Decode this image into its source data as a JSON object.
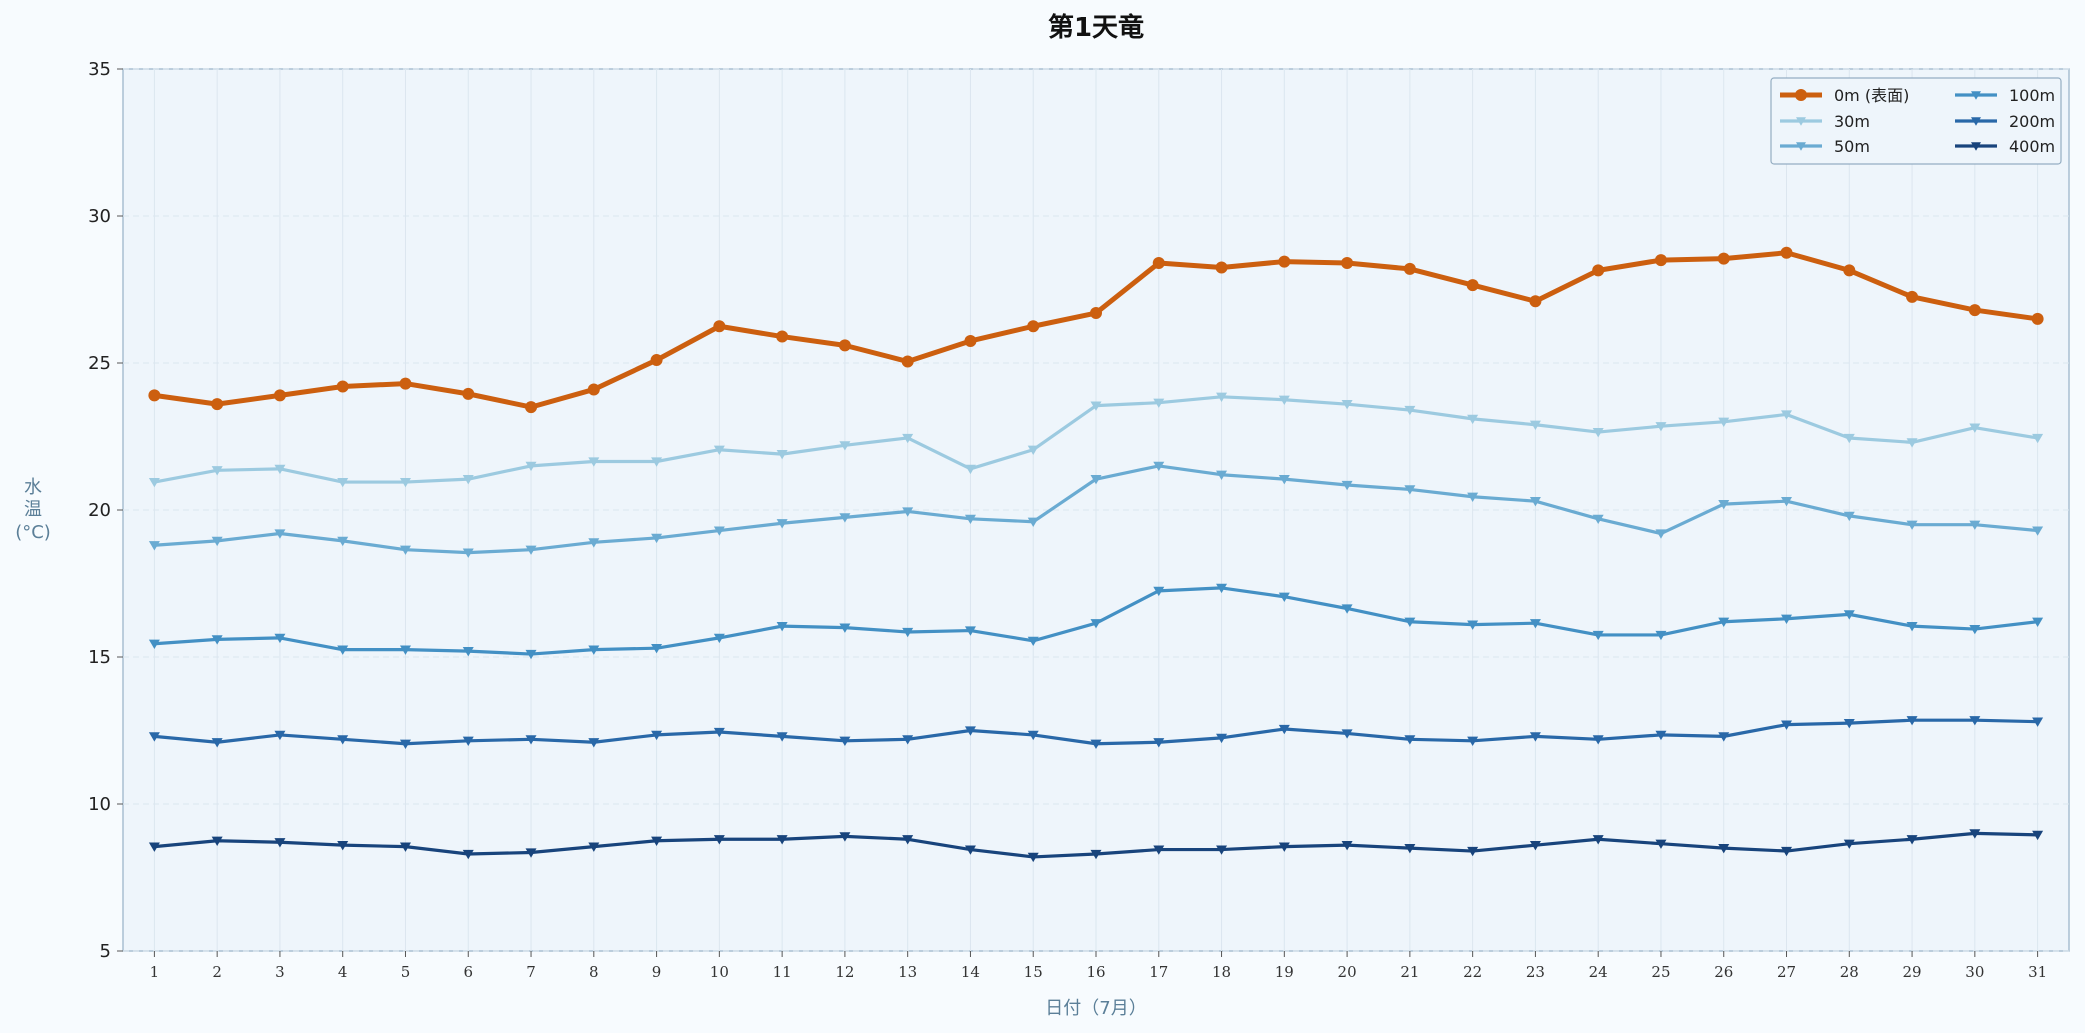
{
  "chart_data": {
    "type": "line",
    "title": "第1天竜",
    "xlabel": "日付（7月）",
    "ylabel": "水温(°C)",
    "ylabel_lines": [
      "水",
      "温",
      "(°C)"
    ],
    "xlim": [
      0.5,
      31.5
    ],
    "ylim": [
      5,
      35
    ],
    "yticks": [
      5,
      10,
      15,
      20,
      25,
      30,
      35
    ],
    "x": [
      1,
      2,
      3,
      4,
      5,
      6,
      7,
      8,
      9,
      10,
      11,
      12,
      13,
      14,
      15,
      16,
      17,
      18,
      19,
      20,
      21,
      22,
      23,
      24,
      25,
      26,
      27,
      28,
      29,
      30,
      31
    ],
    "grid": true,
    "legend_position": "top-right",
    "legend_columns": 2,
    "series": [
      {
        "name": "0m (表面)",
        "color": "#cc5f0f",
        "marker": "circle",
        "emphasis": true,
        "values": [
          23.9,
          23.6,
          23.9,
          24.2,
          24.3,
          23.95,
          23.5,
          24.1,
          25.1,
          26.25,
          25.9,
          25.6,
          25.05,
          25.75,
          26.25,
          26.7,
          28.4,
          28.25,
          28.45,
          28.4,
          28.2,
          27.65,
          27.1,
          28.15,
          28.5,
          28.55,
          28.75,
          28.15,
          27.25,
          26.8,
          26.5
        ]
      },
      {
        "name": "30m",
        "color": "#9ccae0",
        "marker": "triangle-down",
        "values": [
          20.95,
          21.35,
          21.4,
          20.95,
          20.95,
          21.05,
          21.5,
          21.65,
          21.65,
          22.05,
          21.9,
          22.2,
          22.45,
          21.4,
          22.05,
          23.55,
          23.65,
          23.85,
          23.75,
          23.6,
          23.4,
          23.1,
          22.9,
          22.65,
          22.85,
          23.0,
          23.25,
          22.45,
          22.3,
          22.8,
          22.45
        ]
      },
      {
        "name": "50m",
        "color": "#6aabd2",
        "marker": "triangle-down",
        "values": [
          18.8,
          18.95,
          19.2,
          18.95,
          18.65,
          18.55,
          18.65,
          18.9,
          19.05,
          19.3,
          19.55,
          19.75,
          19.95,
          19.7,
          19.6,
          21.05,
          21.5,
          21.2,
          21.05,
          20.85,
          20.7,
          20.45,
          20.3,
          19.7,
          19.2,
          20.2,
          20.3,
          19.8,
          19.5,
          19.5,
          19.3
        ]
      },
      {
        "name": "100m",
        "color": "#4390c4",
        "marker": "triangle-down",
        "values": [
          15.45,
          15.6,
          15.65,
          15.25,
          15.25,
          15.2,
          15.1,
          15.25,
          15.3,
          15.65,
          16.05,
          16.0,
          15.85,
          15.9,
          15.55,
          16.15,
          17.25,
          17.35,
          17.05,
          16.65,
          16.2,
          16.1,
          16.15,
          15.75,
          15.75,
          16.2,
          16.3,
          16.45,
          16.05,
          15.95,
          16.2
        ]
      },
      {
        "name": "200m",
        "color": "#2968a8",
        "marker": "triangle-down",
        "values": [
          12.3,
          12.1,
          12.35,
          12.2,
          12.05,
          12.15,
          12.2,
          12.1,
          12.35,
          12.45,
          12.3,
          12.15,
          12.2,
          12.5,
          12.35,
          12.05,
          12.1,
          12.25,
          12.55,
          12.4,
          12.2,
          12.15,
          12.3,
          12.2,
          12.35,
          12.3,
          12.7,
          12.75,
          12.85,
          12.85,
          12.8
        ]
      },
      {
        "name": "400m",
        "color": "#18447c",
        "marker": "triangle-down",
        "values": [
          8.55,
          8.75,
          8.7,
          8.6,
          8.55,
          8.3,
          8.35,
          8.55,
          8.75,
          8.8,
          8.8,
          8.9,
          8.8,
          8.45,
          8.2,
          8.3,
          8.45,
          8.45,
          8.55,
          8.6,
          8.5,
          8.4,
          8.6,
          8.8,
          8.65,
          8.5,
          8.4,
          8.65,
          8.8,
          9.0,
          8.95
        ]
      }
    ]
  }
}
